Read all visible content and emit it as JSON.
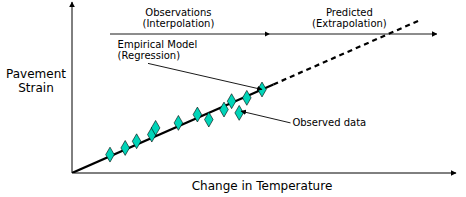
{
  "chart_data": {
    "type": "scatter",
    "xlabel": "Change in Temperature",
    "ylabel": "Pavement\nStrain",
    "annotations": [
      "Observations\n(Interpolation)",
      "Predicted\n(Extrapolation)",
      "Empirical Model\n(Regression)",
      "Observed data"
    ],
    "series": [
      {
        "type": "scatter",
        "marker": "diamond",
        "color": "#00d4b8",
        "x": [
          0.1,
          0.14,
          0.17,
          0.21,
          0.22,
          0.28,
          0.33,
          0.36,
          0.4,
          0.42,
          0.44,
          0.46,
          0.5
        ],
        "values": [
          0.11,
          0.15,
          0.19,
          0.23,
          0.27,
          0.3,
          0.35,
          0.32,
          0.38,
          0.43,
          0.36,
          0.45,
          0.5
        ]
      },
      {
        "type": "line",
        "line_style": "solid",
        "color": "#000000",
        "x": [
          0.0,
          0.53
        ],
        "values": [
          0.0,
          0.53
        ]
      },
      {
        "type": "line",
        "line_style": "dashed",
        "color": "#000000",
        "x": [
          0.53,
          0.92
        ],
        "values": [
          0.53,
          0.92
        ]
      }
    ],
    "reference_lines": [
      {
        "y": 0.505,
        "color": "white"
      }
    ],
    "xlim": [
      0.0,
      1.0
    ],
    "ylim": [
      0.0,
      1.0
    ],
    "tick_labels": false,
    "grid": false
  }
}
